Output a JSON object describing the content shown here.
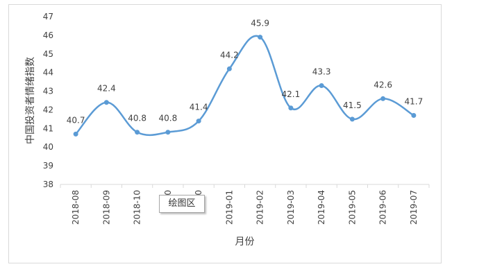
{
  "colors": {
    "series": "#5b9bd5",
    "grid": "#d9d9d9",
    "text": "#404040"
  },
  "tooltip": "绘图区",
  "chart_data": {
    "type": "line",
    "smooth": true,
    "title": "",
    "xlabel": "月份",
    "ylabel": "中国投资者情绪指数",
    "ylim": [
      38,
      47
    ],
    "yticks": [
      38,
      39,
      40,
      41,
      42,
      43,
      44,
      45,
      46,
      47
    ],
    "categories": [
      "2018-08",
      "2018-09",
      "2018-10",
      "2018-11",
      "2018-12",
      "2019-01",
      "2019-02",
      "2019-03",
      "2019-04",
      "2019-05",
      "2019-06",
      "2019-07"
    ],
    "category_labels": [
      "2018-08",
      "2018-09",
      "2018-10",
      "20",
      "20",
      "2019-01",
      "2019-02",
      "2019-03",
      "2019-04",
      "2019-05",
      "2019-06",
      "2019-07"
    ],
    "series": [
      {
        "values": [
          40.7,
          42.4,
          40.8,
          40.8,
          41.4,
          44.2,
          45.9,
          42.1,
          43.3,
          41.5,
          42.6,
          41.7
        ]
      }
    ],
    "grid": false,
    "legend": "none"
  }
}
